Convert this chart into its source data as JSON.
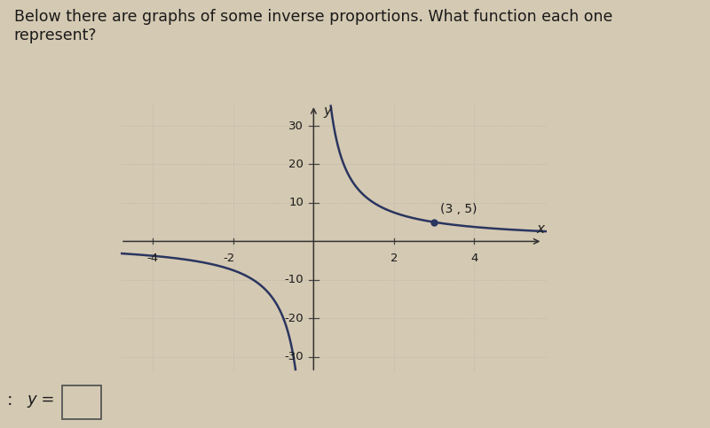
{
  "title_text": "Below there are graphs of some inverse proportions. What function each one\nrepresent?",
  "title_fontsize": 12.5,
  "background_color": "#d4c9b2",
  "curve_color": "#2a3560",
  "curve_lw": 1.8,
  "point_x": 3,
  "point_y": 5,
  "point_label": "(3 , 5)",
  "k": 15,
  "xlim": [
    -4.8,
    5.8
  ],
  "ylim": [
    -34,
    36
  ],
  "xticks": [
    -4,
    -2,
    2,
    4
  ],
  "yticks": [
    -30,
    -20,
    -10,
    10,
    20,
    30
  ],
  "tick_fontsize": 9.5,
  "axis_label_fontsize": 11,
  "answer_fontsize": 13
}
